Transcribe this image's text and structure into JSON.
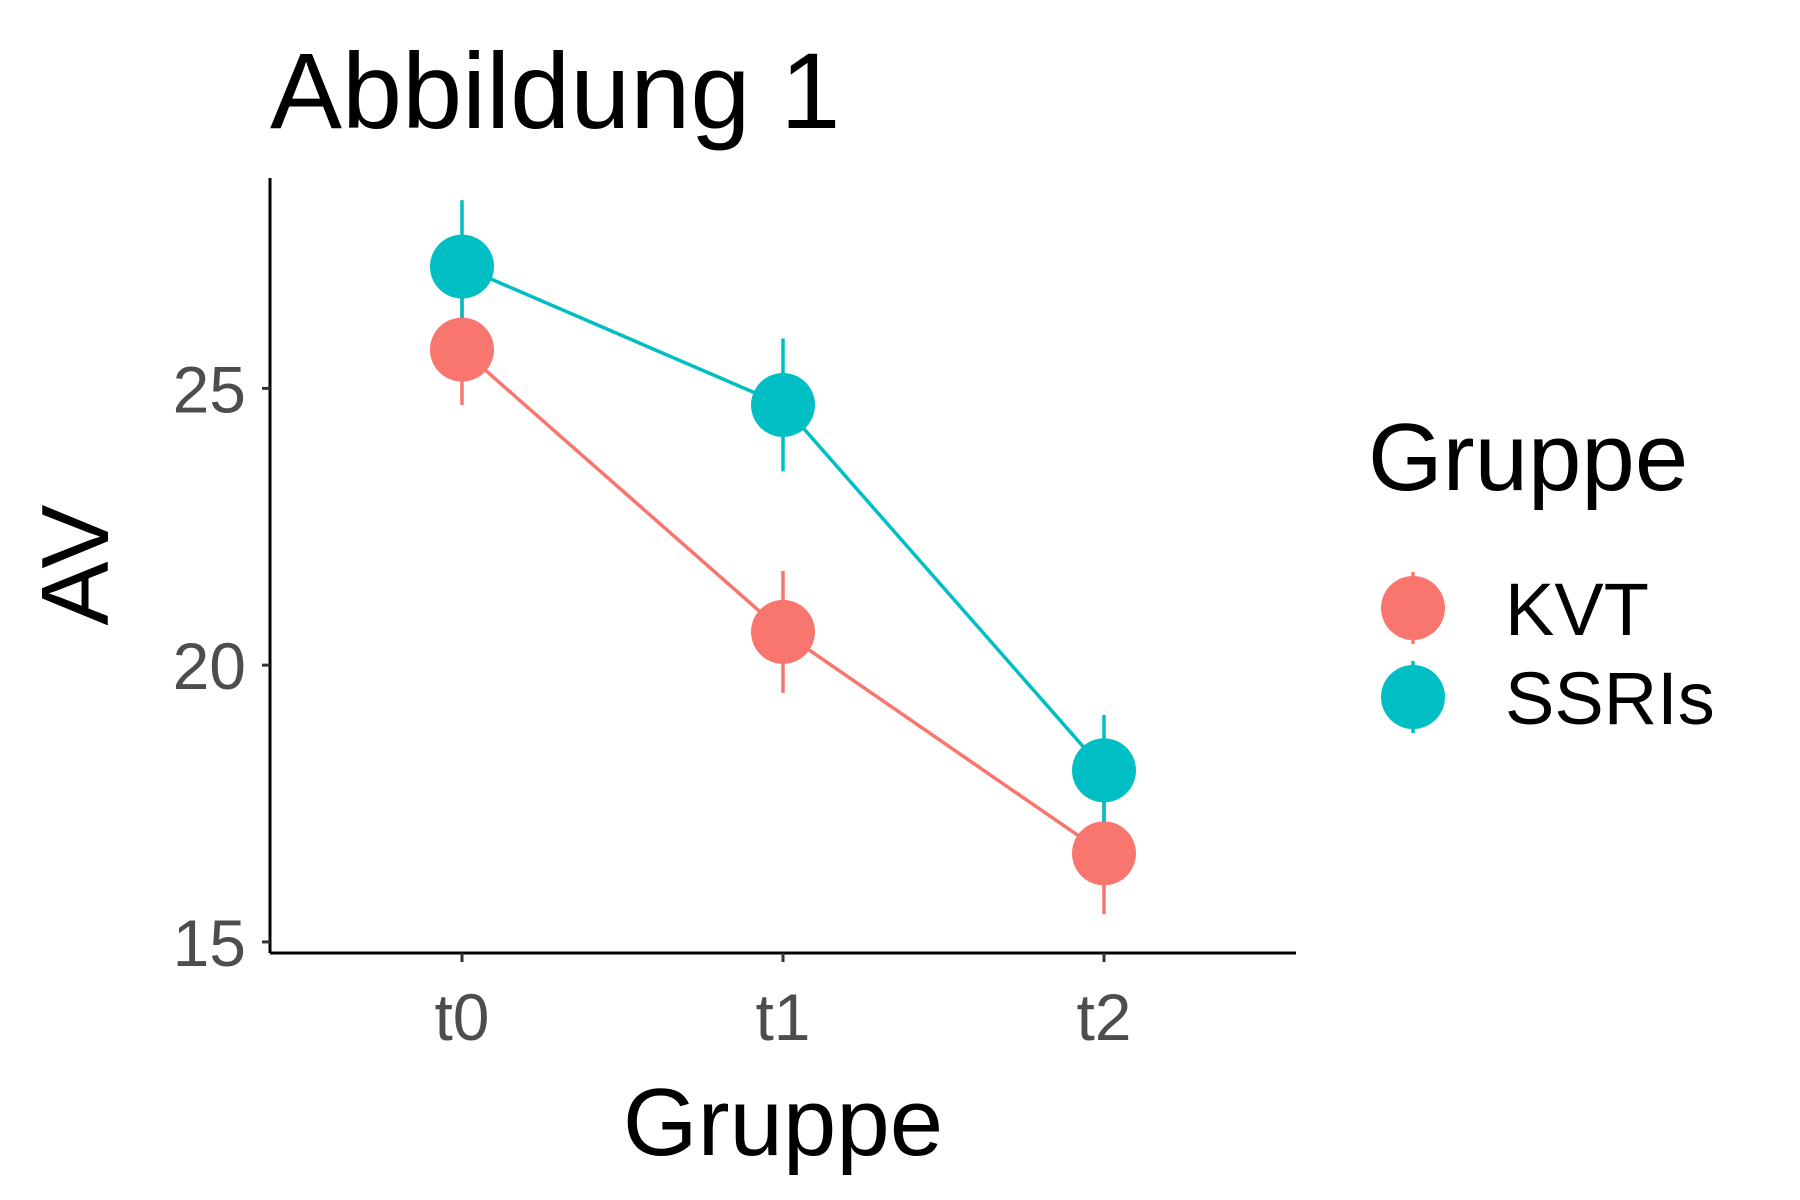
{
  "chart_data": {
    "type": "line",
    "title": "Abbildung 1",
    "xlabel": "Gruppe",
    "ylabel": "AV",
    "categories": [
      "t0",
      "t1",
      "t2"
    ],
    "ylim": [
      14.8,
      28.8
    ],
    "yticks": [
      15,
      20,
      25
    ],
    "grid": false,
    "legend": {
      "title": "Gruppe",
      "position": "right",
      "entries": [
        "KVT",
        "SSRIs"
      ]
    },
    "series": [
      {
        "name": "KVT",
        "color": "#F8766D",
        "values": [
          25.7,
          20.6,
          16.6
        ],
        "error_low": [
          24.7,
          19.5,
          15.5
        ],
        "error_high": [
          26.7,
          21.7,
          17.6
        ]
      },
      {
        "name": "SSRIs",
        "color": "#00BFC4",
        "values": [
          27.2,
          24.7,
          18.1
        ],
        "error_low": [
          26.0,
          23.5,
          17.0
        ],
        "error_high": [
          28.4,
          25.9,
          19.1
        ]
      }
    ]
  }
}
